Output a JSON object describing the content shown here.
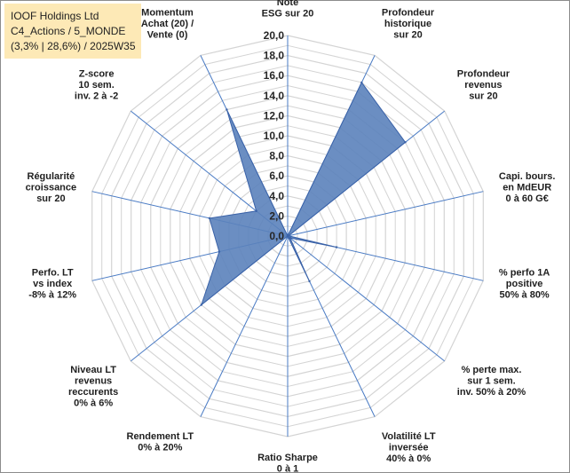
{
  "title_box": {
    "line1": "IOOF Holdings Ltd",
    "line2": "C4_Actions / 5_MONDE",
    "line3": "(3,3% | 28,6%) / 2025W35"
  },
  "colors": {
    "fill": "#5b82bb",
    "stroke": "#3a62a8",
    "spokes": "#4a7bc4",
    "grid": "#d4d4d4",
    "title_box_bg": "#fde9b6"
  },
  "chart_data": {
    "type": "radar",
    "rmax": 20,
    "ticks": [
      "0,0",
      "2,0",
      "4,0",
      "6,0",
      "8,0",
      "10,0",
      "12,0",
      "14,0",
      "16,0",
      "18,0",
      "20,0"
    ],
    "grid": true,
    "axes": [
      {
        "label": [
          "Note",
          "ESG sur 20"
        ],
        "value": 0.0
      },
      {
        "label": [
          "Profondeur",
          "historique",
          "sur 20"
        ],
        "value": 17.0
      },
      {
        "label": [
          "Profondeur",
          "revenus",
          "sur 20"
        ],
        "value": 15.0
      },
      {
        "label": [
          "Capi. bours.",
          "en MdEUR",
          "0 à 60 G€"
        ],
        "value": 0.1
      },
      {
        "label": [
          "% perfo 1A",
          "positive",
          "50% à 80%"
        ],
        "value": 5.0
      },
      {
        "label": [
          "% perte max.",
          "sur 1 sem.",
          "inv. 50% à 20%"
        ],
        "value": 0.3
      },
      {
        "label": [
          "Volatilité LT",
          "inversée",
          "40% à 0%"
        ],
        "value": 5.0
      },
      {
        "label": [
          "Ratio Sharpe",
          "0 à 1"
        ],
        "value": 0.0
      },
      {
        "label": [
          "Rendement LT",
          "0% à 20%"
        ],
        "value": 0.0
      },
      {
        "label": [
          "Niveau LT",
          "revenus",
          "reccurents",
          "0% à 6%"
        ],
        "value": 11.0
      },
      {
        "label": [
          "Perfo. LT",
          "vs index",
          "-8% à 12%"
        ],
        "value": 7.0
      },
      {
        "label": [
          "Régularité",
          "croissance",
          "sur 20"
        ],
        "value": 8.0
      },
      {
        "label": [
          "Z-score",
          "10 sem.",
          "inv. 2 à -2"
        ],
        "value": 4.0
      },
      {
        "label": [
          "Momentum",
          "Achat (20) /",
          "Vente (0)"
        ],
        "value": 14.0
      }
    ]
  }
}
